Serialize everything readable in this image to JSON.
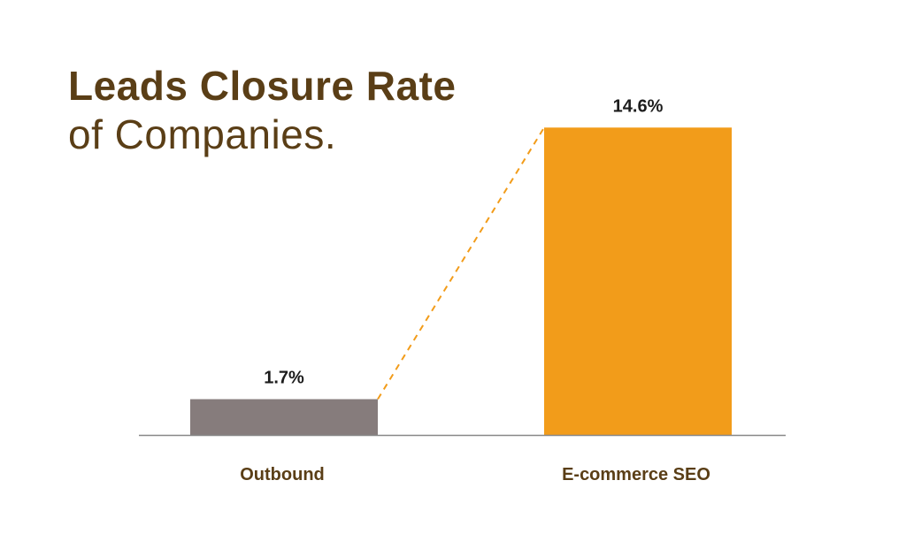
{
  "header": {
    "title": "Leads Closure Rate",
    "subtitle": "of Companies."
  },
  "colors": {
    "title": "#5a3e16",
    "outbound_bar": "#867c7c",
    "seo_bar": "#f29c1a",
    "connector": "#f29c1a",
    "baseline": "#888888"
  },
  "chart_data": {
    "type": "bar",
    "title": "Leads Closure Rate of Companies.",
    "categories": [
      "Outbound",
      "E-commerce SEO"
    ],
    "values": [
      1.7,
      14.6
    ],
    "data_labels": [
      "1.7%",
      "14.6%"
    ],
    "bar_colors": [
      "#867c7c",
      "#f29c1a"
    ],
    "ylim": [
      0,
      15.2
    ],
    "grid": false,
    "legend": "none",
    "connector_line": "dashed"
  }
}
